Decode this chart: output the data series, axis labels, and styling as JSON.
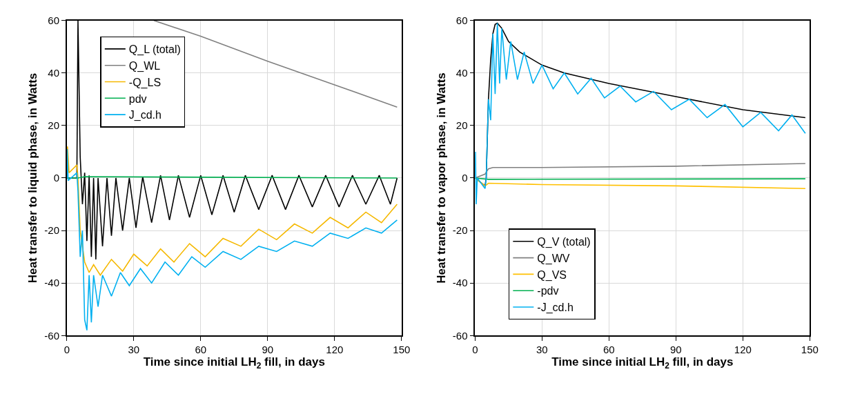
{
  "chart_data": [
    {
      "type": "line",
      "xlabel": "Time since initial LH$_{2}$ fill, in days",
      "ylabel": "Heat transfer to liquid phase, in Watts",
      "xlim": [
        0,
        150
      ],
      "ylim": [
        -60,
        60
      ],
      "xticks": [
        0,
        30,
        60,
        90,
        120,
        150
      ],
      "yticks": [
        -60,
        -40,
        -20,
        0,
        20,
        40,
        60
      ],
      "grid": true,
      "legend": "top left",
      "marker": "none",
      "line_style": "solid",
      "series": [
        {
          "name": "Q_L (total)",
          "color": "#000000",
          "x": [
            0,
            4.5,
            5,
            6,
            7,
            8,
            9,
            10,
            11,
            12,
            13,
            14,
            16,
            18,
            20,
            22,
            25,
            28,
            31,
            34,
            38,
            42,
            46,
            50,
            55,
            60,
            65,
            70,
            75,
            80,
            86,
            92,
            98,
            104,
            110,
            116,
            122,
            128,
            134,
            140,
            145,
            148
          ],
          "values": [
            0,
            0,
            60,
            8,
            -10,
            2,
            -24,
            1,
            -30,
            0,
            -31,
            0,
            -26,
            0,
            -22,
            0,
            -20,
            0,
            -19,
            0.5,
            -17,
            1,
            -16,
            1,
            -15,
            1,
            -14,
            1,
            -13,
            1,
            -12,
            1,
            -12,
            1,
            -11,
            1,
            -11,
            1,
            -10,
            1,
            -10,
            0
          ]
        },
        {
          "name": "Q_WL",
          "color": "#808080",
          "x": [
            39,
            60,
            90,
            120,
            148
          ],
          "values": [
            60,
            54,
            44.5,
            35.5,
            27
          ]
        },
        {
          "name": "-Q_LS",
          "color": "#f5b800",
          "x": [
            0,
            0.3,
            1,
            4.5,
            5,
            6,
            8,
            10,
            12,
            15,
            20,
            25,
            30,
            36,
            42,
            48,
            55,
            62,
            70,
            78,
            86,
            94,
            102,
            110,
            118,
            126,
            134,
            141,
            148
          ],
          "values": [
            0,
            12,
            2,
            5,
            0,
            -20,
            -32,
            -36,
            -33,
            -37,
            -31,
            -35.5,
            -29,
            -33.5,
            -27,
            -32,
            -25,
            -30,
            -23,
            -26,
            -19.5,
            -23.5,
            -17.5,
            -21,
            -15,
            -19,
            -13,
            -17,
            -10
          ]
        },
        {
          "name": "pdv",
          "color": "#00b050",
          "x": [
            0,
            5,
            8,
            148
          ],
          "values": [
            0,
            0,
            0.5,
            0
          ]
        },
        {
          "name": "J_cd.h",
          "color": "#00b0f0",
          "x": [
            0,
            0.15,
            0.6,
            4.5,
            5,
            6,
            7,
            8,
            9,
            10,
            11,
            12,
            14,
            16,
            20,
            24,
            28,
            33,
            38,
            44,
            50,
            56,
            62,
            70,
            78,
            86,
            94,
            102,
            110,
            118,
            126,
            134,
            141,
            148
          ],
          "values": [
            0,
            11,
            -1,
            2,
            -5,
            -30,
            -20,
            -54,
            -58,
            -37,
            -55,
            -37,
            -49,
            -37,
            -45,
            -36,
            -41,
            -34.5,
            -40,
            -32,
            -37,
            -30,
            -34,
            -28,
            -31,
            -26,
            -28,
            -24,
            -26,
            -21,
            -23,
            -19,
            -21,
            -16
          ]
        }
      ]
    },
    {
      "type": "line",
      "xlabel": "Time since initial LH$_{2}$ fill, in days",
      "ylabel": "Heat transfer to vapor phase, in Watts",
      "xlim": [
        0,
        150
      ],
      "ylim": [
        -60,
        60
      ],
      "xticks": [
        0,
        30,
        60,
        90,
        120,
        150
      ],
      "yticks": [
        -60,
        -40,
        -20,
        0,
        20,
        40,
        60
      ],
      "grid": true,
      "legend": "bottom left",
      "marker": "none",
      "line_style": "solid",
      "series": [
        {
          "name": "Q_V (total)",
          "color": "#000000",
          "x": [
            0,
            4.5,
            5,
            6,
            7,
            8,
            9,
            10,
            12,
            15,
            20,
            30,
            40,
            60,
            90,
            120,
            148
          ],
          "values": [
            0,
            -3,
            0,
            30,
            45,
            55,
            58.5,
            59,
            57,
            52,
            48,
            43,
            40,
            36,
            31,
            26,
            23
          ]
        },
        {
          "name": "Q_WV",
          "color": "#808080",
          "x": [
            0,
            4.5,
            6,
            8,
            30,
            90,
            148
          ],
          "values": [
            0,
            1.5,
            3.5,
            4,
            4,
            4.5,
            5.5
          ]
        },
        {
          "name": "Q_VS",
          "color": "#ffc000",
          "x": [
            0,
            4.5,
            6,
            30,
            90,
            148
          ],
          "values": [
            0,
            -3,
            -2,
            -2.5,
            -3,
            -4
          ]
        },
        {
          "name": "-pdv",
          "color": "#00b050",
          "x": [
            0,
            6,
            148
          ],
          "values": [
            0,
            -0.5,
            -0.3
          ]
        },
        {
          "name": "-J_cd.h",
          "color": "#00b0f0",
          "x": [
            0,
            0.2,
            0.5,
            1,
            4.5,
            5,
            6,
            7,
            8,
            9,
            10,
            11,
            12,
            14,
            16,
            19,
            22,
            26,
            30,
            35,
            40,
            46,
            52,
            58,
            65,
            72,
            80,
            88,
            96,
            104,
            112,
            120,
            128,
            136,
            142,
            148
          ],
          "values": [
            0,
            10,
            -10,
            0,
            -4,
            0,
            30,
            22,
            55,
            32,
            59,
            36,
            57,
            37.5,
            52,
            37.5,
            48,
            36,
            43,
            34,
            40,
            32,
            38,
            30.5,
            35,
            29,
            33,
            26,
            30,
            23,
            28,
            19.5,
            25,
            18,
            24,
            17
          ]
        }
      ]
    }
  ]
}
